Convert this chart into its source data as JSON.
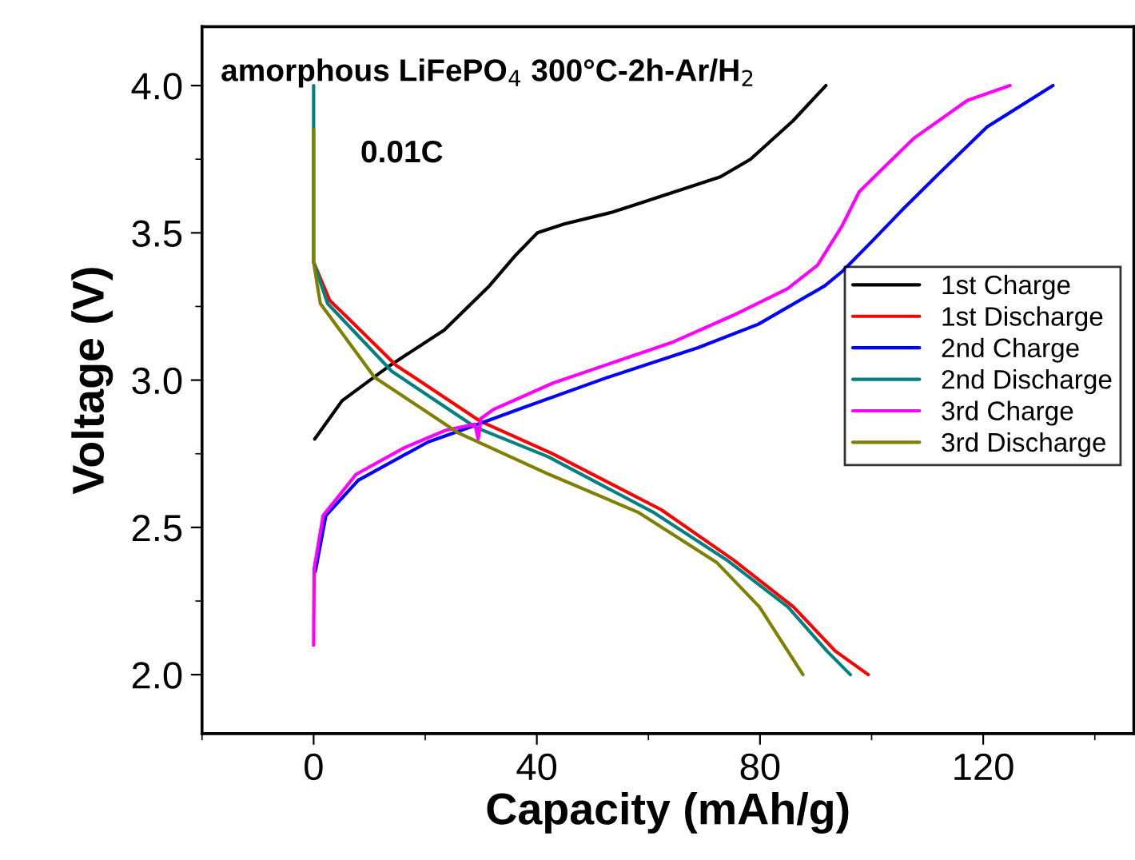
{
  "chart_data": {
    "type": "line",
    "xlabel": "Capacity (mAh/g)",
    "ylabel": "Voltage (V)",
    "annotations": [
      "amorphous LiFePO$_{4}$ 300°C-2h-Ar/H$_{2}$",
      "0.01C"
    ],
    "xlim": [
      -20,
      147
    ],
    "xticks": [
      0,
      40,
      80,
      120
    ],
    "ylim": [
      1.8,
      4.2
    ],
    "yticks": [
      {
        "value": 2.0,
        "label": "2.0"
      },
      {
        "value": 2.5,
        "label": "2.5"
      },
      {
        "value": 3.0,
        "label": "3.0"
      },
      {
        "value": 3.5,
        "label": "3.5"
      },
      {
        "value": 4.0,
        "label": "4.0"
      }
    ],
    "legend": "right",
    "grid": false,
    "marker": "none",
    "line_style": "solid",
    "series": [
      {
        "name": "1st Charge",
        "color": "#000000",
        "x": [
          0.2,
          5.1,
          13.7,
          23.4,
          31.5,
          36,
          40.1,
          44.9,
          53.5,
          60.0,
          72.9,
          78.3,
          85.9,
          91.8
        ],
        "values": [
          2.8,
          2.93,
          3.05,
          3.17,
          3.32,
          3.42,
          3.5,
          3.53,
          3.57,
          3.61,
          3.69,
          3.75,
          3.88,
          4.0
        ]
      },
      {
        "name": "1st Discharge",
        "color": "#ff0000",
        "x": [
          0,
          2.9,
          6.2,
          14.8,
          29.9,
          42.8,
          62.3,
          75.2,
          86.0,
          93.5,
          99.4
        ],
        "values": [
          3.4,
          3.27,
          3.21,
          3.05,
          2.86,
          2.75,
          2.56,
          2.39,
          2.23,
          2.08,
          2.0
        ]
      },
      {
        "name": "2nd Charge",
        "color": "#0000ff",
        "x": [
          0.3,
          2.2,
          8,
          20.5,
          28.0,
          36.6,
          52.8,
          68.9,
          79.7,
          91.6,
          94.8,
          100,
          105.6,
          112.0,
          120.7,
          132.5
        ],
        "values": [
          2.35,
          2.54,
          2.66,
          2.79,
          2.84,
          2.9,
          3.01,
          3.11,
          3.19,
          3.32,
          3.37,
          3.47,
          3.58,
          3.7,
          3.86,
          4.0
        ]
      },
      {
        "name": "2nd Discharge",
        "color": "#008080",
        "x": [
          0,
          0,
          2.5,
          14,
          29,
          42,
          61,
          74,
          85,
          92,
          96.2
        ],
        "values": [
          4.0,
          3.4,
          3.26,
          3.03,
          2.84,
          2.74,
          2.55,
          2.39,
          2.23,
          2.08,
          2.0
        ]
      },
      {
        "name": "3rd Charge",
        "color": "#ff00ff",
        "x": [
          0,
          0.1,
          1.7,
          7.6,
          16.2,
          23.7,
          28.9,
          29.5,
          30.0,
          32.2,
          42.9,
          53.7,
          64.5,
          75.2,
          84.9,
          90.3,
          94.6,
          97.8,
          102.1,
          107.5,
          117.2,
          124.8
        ],
        "values": [
          2.1,
          2.36,
          2.54,
          2.68,
          2.77,
          2.83,
          2.85,
          2.8,
          2.87,
          2.9,
          2.99,
          3.06,
          3.13,
          3.22,
          3.31,
          3.39,
          3.52,
          3.64,
          3.72,
          3.82,
          3.95,
          4.0
        ]
      },
      {
        "name": "3rd Discharge",
        "color": "#808000",
        "x": [
          0,
          0,
          1.2,
          10.9,
          26.0,
          42.2,
          58.3,
          72.3,
          79.9,
          87.7
        ],
        "values": [
          3.85,
          3.4,
          3.26,
          3.01,
          2.82,
          2.68,
          2.55,
          2.38,
          2.23,
          2.0
        ]
      }
    ]
  }
}
